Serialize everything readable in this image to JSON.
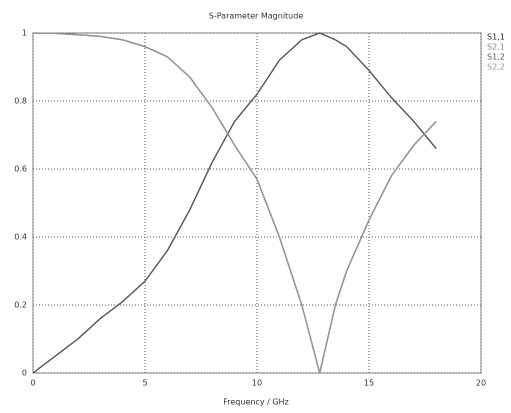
{
  "chart_data": {
    "type": "line",
    "title": "S-Parameter Magnitude",
    "x_label": "Frequency / GHz",
    "x": [
      0,
      1,
      2,
      3,
      4,
      5,
      6,
      7,
      8,
      9,
      10,
      11,
      12,
      12.8,
      13.5,
      14,
      15,
      16,
      17,
      18
    ],
    "series": [
      {
        "name": "S1,1",
        "color": "#222222",
        "values": [
          1,
          0.999,
          0.995,
          0.99,
          0.98,
          0.96,
          0.93,
          0.87,
          0.78,
          0.67,
          0.57,
          0.4,
          0.2,
          0,
          0.2,
          0.3,
          0.45,
          0.58,
          0.67,
          0.74
        ]
      },
      {
        "name": "S2,1",
        "color": "#8a8a8a",
        "values": [
          0,
          0.05,
          0.1,
          0.16,
          0.21,
          0.27,
          0.36,
          0.48,
          0.62,
          0.74,
          0.82,
          0.92,
          0.98,
          1,
          0.98,
          0.96,
          0.89,
          0.81,
          0.74,
          0.66
        ]
      },
      {
        "name": "S1,2",
        "color": "#555555",
        "values": [
          0,
          0.05,
          0.1,
          0.16,
          0.21,
          0.27,
          0.36,
          0.48,
          0.62,
          0.74,
          0.82,
          0.92,
          0.98,
          1,
          0.98,
          0.96,
          0.89,
          0.81,
          0.74,
          0.66
        ]
      },
      {
        "name": "S2,2",
        "color": "#999999",
        "values": [
          1,
          0.999,
          0.995,
          0.99,
          0.98,
          0.96,
          0.93,
          0.87,
          0.78,
          0.67,
          0.57,
          0.4,
          0.2,
          0,
          0.2,
          0.3,
          0.45,
          0.58,
          0.67,
          0.74
        ]
      }
    ],
    "xlim": [
      0,
      20
    ],
    "xticks": [
      0,
      5,
      10,
      15,
      20
    ],
    "ylim": [
      0,
      1
    ],
    "yticks": [
      0,
      0.2,
      0.4,
      0.6,
      0.8,
      1
    ],
    "grid": true
  }
}
